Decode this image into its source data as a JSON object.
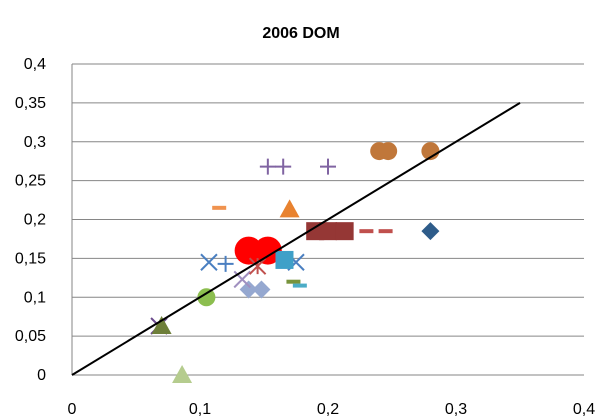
{
  "chart_data": {
    "type": "scatter",
    "title": "2006 DOM",
    "xlabel": "",
    "ylabel": "",
    "xlim": [
      0,
      0.4
    ],
    "ylim": [
      0,
      0.4
    ],
    "x_tick_labels": [
      "0",
      "0,1",
      "0,2",
      "0,3",
      "0,4"
    ],
    "y_tick_labels": [
      "0",
      "0,05",
      "0,1",
      "0,15",
      "0,2",
      "0,25",
      "0,3",
      "0,35",
      "0,4"
    ],
    "grid": "horizontal",
    "legend": "none",
    "reference_line": {
      "from": [
        0,
        0
      ],
      "to": [
        0.35,
        0.35
      ],
      "color": "#000000"
    },
    "points": [
      {
        "x": 0.28,
        "y": 0.185,
        "marker": "diamond",
        "color": "#2E5C8A"
      },
      {
        "x": 0.138,
        "y": 0.16,
        "marker": "circle-large",
        "color": "#FF0000"
      },
      {
        "x": 0.153,
        "y": 0.16,
        "marker": "circle-large",
        "color": "#FF0000"
      },
      {
        "x": 0.105,
        "y": 0.1,
        "marker": "circle",
        "color": "#8CBE4F"
      },
      {
        "x": 0.068,
        "y": 0.063,
        "marker": "x",
        "color": "#6B4A8C"
      },
      {
        "x": 0.07,
        "y": 0.063,
        "marker": "triangle",
        "color": "#6E7F3A"
      },
      {
        "x": 0.086,
        "y": 0.0,
        "marker": "triangle",
        "color": "#B5CC8E"
      },
      {
        "x": 0.17,
        "y": 0.213,
        "marker": "triangle",
        "color": "#E8822F"
      },
      {
        "x": 0.138,
        "y": 0.11,
        "marker": "diamond",
        "color": "#95A8D0"
      },
      {
        "x": 0.148,
        "y": 0.11,
        "marker": "diamond",
        "color": "#95A8D0"
      },
      {
        "x": 0.107,
        "y": 0.145,
        "marker": "x",
        "color": "#4A7FC1"
      },
      {
        "x": 0.175,
        "y": 0.145,
        "marker": "x",
        "color": "#4A7FC1"
      },
      {
        "x": 0.12,
        "y": 0.143,
        "marker": "plus",
        "color": "#4A7FC1"
      },
      {
        "x": 0.133,
        "y": 0.123,
        "marker": "x",
        "color": "#A090C0"
      },
      {
        "x": 0.145,
        "y": 0.14,
        "marker": "star",
        "color": "#C0504D"
      },
      {
        "x": 0.166,
        "y": 0.148,
        "marker": "square",
        "color": "#3FA0C8"
      },
      {
        "x": 0.153,
        "y": 0.268,
        "marker": "plus",
        "color": "#8064A2"
      },
      {
        "x": 0.165,
        "y": 0.268,
        "marker": "plus",
        "color": "#8064A2"
      },
      {
        "x": 0.2,
        "y": 0.268,
        "marker": "plus",
        "color": "#8064A2"
      },
      {
        "x": 0.24,
        "y": 0.288,
        "marker": "circle",
        "color": "#C0773A"
      },
      {
        "x": 0.247,
        "y": 0.288,
        "marker": "circle",
        "color": "#C0773A"
      },
      {
        "x": 0.28,
        "y": 0.288,
        "marker": "circle",
        "color": "#C0773A"
      },
      {
        "x": 0.115,
        "y": 0.215,
        "marker": "dash",
        "color": "#F0934F"
      },
      {
        "x": 0.19,
        "y": 0.185,
        "marker": "square",
        "color": "#953735"
      },
      {
        "x": 0.2,
        "y": 0.185,
        "marker": "square",
        "color": "#953735"
      },
      {
        "x": 0.213,
        "y": 0.185,
        "marker": "square",
        "color": "#953735"
      },
      {
        "x": 0.23,
        "y": 0.185,
        "marker": "dash",
        "color": "#C0504D"
      },
      {
        "x": 0.245,
        "y": 0.185,
        "marker": "dash",
        "color": "#C0504D"
      },
      {
        "x": 0.173,
        "y": 0.12,
        "marker": "dash",
        "color": "#77933C"
      },
      {
        "x": 0.178,
        "y": 0.115,
        "marker": "dash",
        "color": "#4BACC6"
      }
    ]
  }
}
